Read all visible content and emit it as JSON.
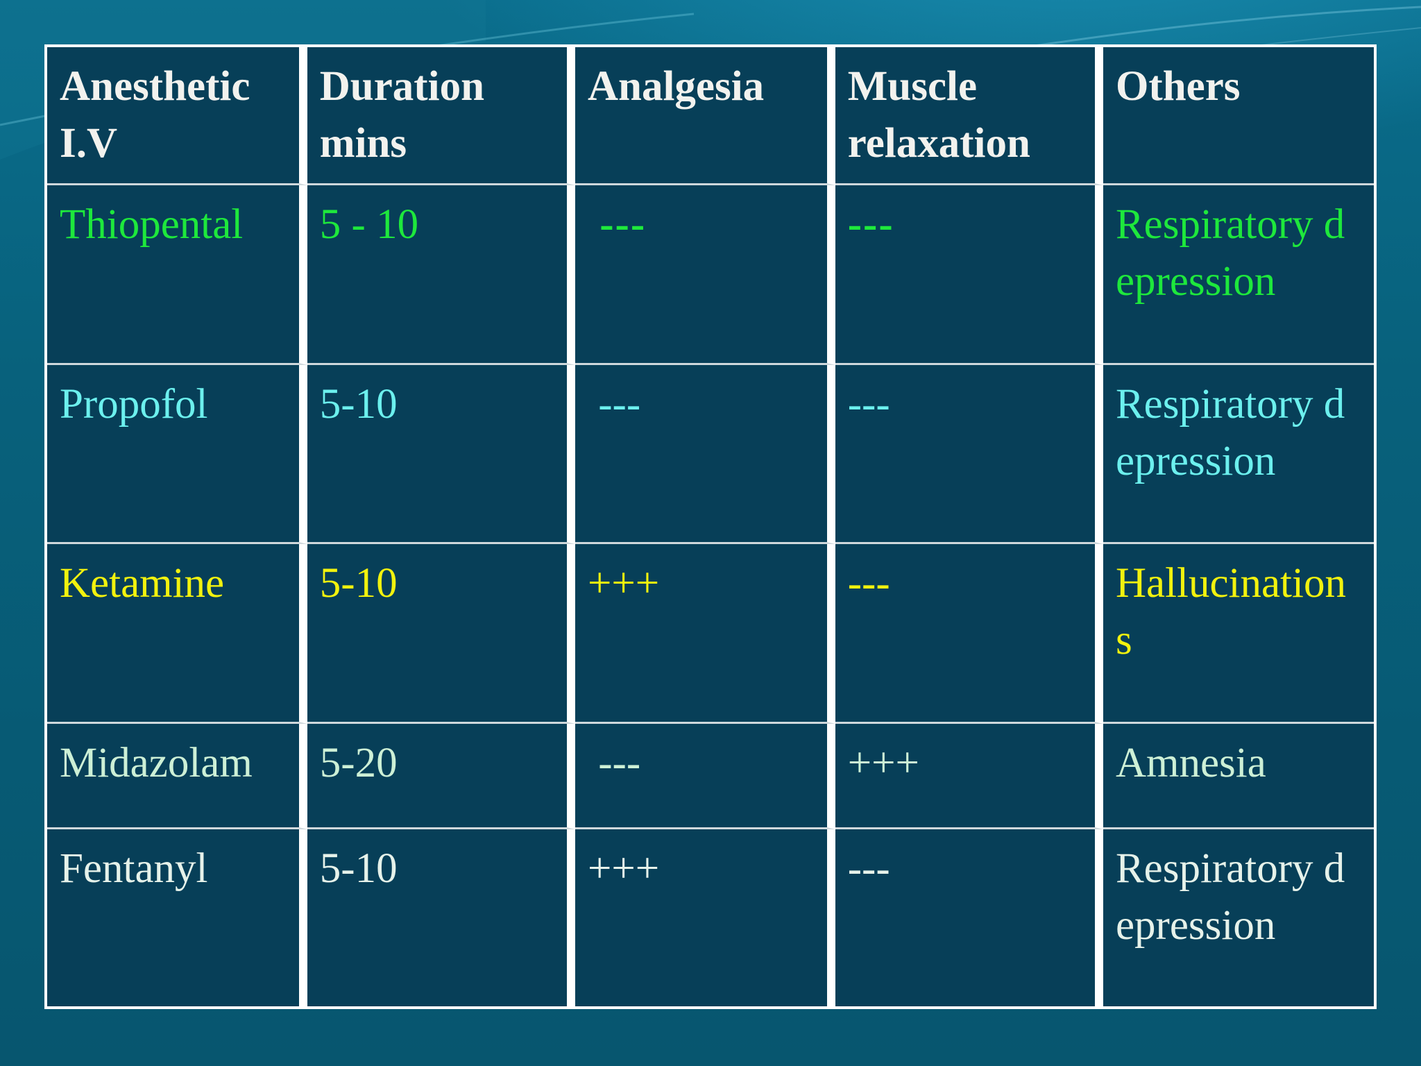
{
  "table": {
    "headers": [
      "Anesthetic I.V",
      "Duration mins",
      "Analgesia",
      "Muscle relaxation",
      "Others"
    ],
    "rows": [
      {
        "color": "#1ee83c",
        "cells": [
          "Thiopental",
          "5 - 10",
          " ---",
          "---",
          "Respiratory depression"
        ]
      },
      {
        "color": "#6cf0ee",
        "cells": [
          "Propofol",
          "5-10",
          " ---",
          "---",
          "Respiratory depression"
        ]
      },
      {
        "color": "#f2f20e",
        "cells": [
          "Ketamine",
          "5-10",
          "+++",
          "---",
          "Hallucinations"
        ]
      },
      {
        "color": "#cdf0d6",
        "cells": [
          "Midazolam",
          "5-20",
          " ---",
          "+++",
          "Amnesia"
        ]
      },
      {
        "color": "#e6f2ea",
        "cells": [
          "Fentanyl",
          "5-10",
          "+++",
          "---",
          "Respiratory depression"
        ]
      }
    ]
  }
}
